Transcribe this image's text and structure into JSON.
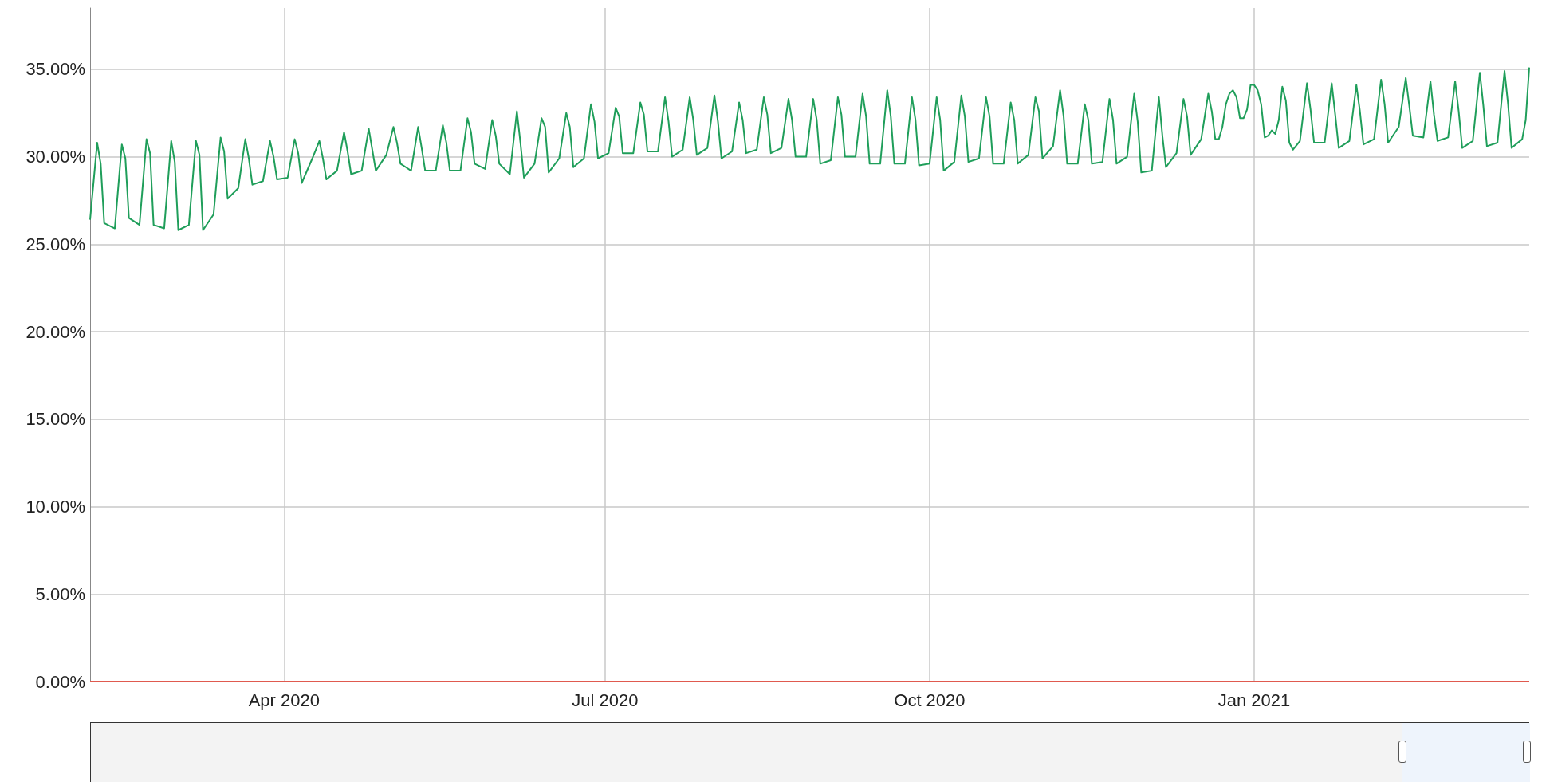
{
  "chart_data": {
    "type": "line",
    "xlim": [
      "2020-02-06",
      "2021-03-20"
    ],
    "ylim": [
      0,
      38.5
    ],
    "xticks": [
      {
        "value": "2020-04-01",
        "label": "Apr 2020"
      },
      {
        "value": "2020-07-01",
        "label": "Jul 2020"
      },
      {
        "value": "2020-10-01",
        "label": "Oct 2020"
      },
      {
        "value": "2021-01-01",
        "label": "Jan 2021"
      }
    ],
    "yticks": [
      {
        "value": 0,
        "label": "0.00%"
      },
      {
        "value": 5,
        "label": "5.00%"
      },
      {
        "value": 10,
        "label": "10.00%"
      },
      {
        "value": 15,
        "label": "15.00%"
      },
      {
        "value": 20,
        "label": "20.00%"
      },
      {
        "value": 25,
        "label": "25.00%"
      },
      {
        "value": 30,
        "label": "30.00%"
      },
      {
        "value": 35,
        "label": "35.00%"
      }
    ],
    "grid": true,
    "line_style": "solid",
    "series": [
      {
        "color": "#1f9e5a",
        "x": [
          "2020-02-06",
          "2020-02-08",
          "2020-02-09",
          "2020-02-10",
          "2020-02-13",
          "2020-02-15",
          "2020-02-16",
          "2020-02-17",
          "2020-02-20",
          "2020-02-22",
          "2020-02-23",
          "2020-02-24",
          "2020-02-27",
          "2020-02-29",
          "2020-03-01",
          "2020-03-02",
          "2020-03-05",
          "2020-03-07",
          "2020-03-08",
          "2020-03-09",
          "2020-03-12",
          "2020-03-14",
          "2020-03-15",
          "2020-03-16",
          "2020-03-19",
          "2020-03-21",
          "2020-03-22",
          "2020-03-23",
          "2020-03-26",
          "2020-03-28",
          "2020-03-29",
          "2020-03-30",
          "2020-04-02",
          "2020-04-04",
          "2020-04-05",
          "2020-04-06",
          "2020-04-09",
          "2020-04-11",
          "2020-04-12",
          "2020-04-13",
          "2020-04-16",
          "2020-04-18",
          "2020-04-19",
          "2020-04-20",
          "2020-04-23",
          "2020-04-25",
          "2020-04-26",
          "2020-04-27",
          "2020-04-30",
          "2020-05-02",
          "2020-05-03",
          "2020-05-04",
          "2020-05-07",
          "2020-05-09",
          "2020-05-10",
          "2020-05-11",
          "2020-05-14",
          "2020-05-16",
          "2020-05-17",
          "2020-05-18",
          "2020-05-21",
          "2020-05-23",
          "2020-05-24",
          "2020-05-25",
          "2020-05-28",
          "2020-05-30",
          "2020-05-31",
          "2020-06-01",
          "2020-06-04",
          "2020-06-06",
          "2020-06-07",
          "2020-06-08",
          "2020-06-11",
          "2020-06-13",
          "2020-06-14",
          "2020-06-15",
          "2020-06-18",
          "2020-06-20",
          "2020-06-21",
          "2020-06-22",
          "2020-06-25",
          "2020-06-27",
          "2020-06-28",
          "2020-06-29",
          "2020-07-02",
          "2020-07-04",
          "2020-07-05",
          "2020-07-06",
          "2020-07-09",
          "2020-07-11",
          "2020-07-12",
          "2020-07-13",
          "2020-07-16",
          "2020-07-18",
          "2020-07-19",
          "2020-07-20",
          "2020-07-23",
          "2020-07-25",
          "2020-07-26",
          "2020-07-27",
          "2020-07-30",
          "2020-08-01",
          "2020-08-02",
          "2020-08-03",
          "2020-08-06",
          "2020-08-08",
          "2020-08-09",
          "2020-08-10",
          "2020-08-13",
          "2020-08-15",
          "2020-08-16",
          "2020-08-17",
          "2020-08-20",
          "2020-08-22",
          "2020-08-23",
          "2020-08-24",
          "2020-08-27",
          "2020-08-29",
          "2020-08-30",
          "2020-08-31",
          "2020-09-03",
          "2020-09-05",
          "2020-09-06",
          "2020-09-07",
          "2020-09-10",
          "2020-09-12",
          "2020-09-13",
          "2020-09-14",
          "2020-09-17",
          "2020-09-19",
          "2020-09-20",
          "2020-09-21",
          "2020-09-24",
          "2020-09-26",
          "2020-09-27",
          "2020-09-28",
          "2020-10-01",
          "2020-10-03",
          "2020-10-04",
          "2020-10-05",
          "2020-10-08",
          "2020-10-10",
          "2020-10-11",
          "2020-10-12",
          "2020-10-15",
          "2020-10-17",
          "2020-10-18",
          "2020-10-19",
          "2020-10-22",
          "2020-10-24",
          "2020-10-25",
          "2020-10-26",
          "2020-10-29",
          "2020-10-31",
          "2020-11-01",
          "2020-11-02",
          "2020-11-05",
          "2020-11-07",
          "2020-11-08",
          "2020-11-09",
          "2020-11-12",
          "2020-11-14",
          "2020-11-15",
          "2020-11-16",
          "2020-11-19",
          "2020-11-21",
          "2020-11-22",
          "2020-11-23",
          "2020-11-26",
          "2020-11-28",
          "2020-11-29",
          "2020-11-30",
          "2020-12-03",
          "2020-12-05",
          "2020-12-06",
          "2020-12-07",
          "2020-12-10",
          "2020-12-12",
          "2020-12-13",
          "2020-12-14",
          "2020-12-17",
          "2020-12-19",
          "2020-12-20",
          "2020-12-21",
          "2020-12-22",
          "2020-12-23",
          "2020-12-24",
          "2020-12-25",
          "2020-12-26",
          "2020-12-27",
          "2020-12-28",
          "2020-12-29",
          "2020-12-30",
          "2020-12-31",
          "2021-01-01",
          "2021-01-02",
          "2021-01-03",
          "2021-01-04",
          "2021-01-05",
          "2021-01-06",
          "2021-01-07",
          "2021-01-08",
          "2021-01-09",
          "2021-01-10",
          "2021-01-11",
          "2021-01-12",
          "2021-01-14",
          "2021-01-16",
          "2021-01-17",
          "2021-01-18",
          "2021-01-21",
          "2021-01-23",
          "2021-01-24",
          "2021-01-25",
          "2021-01-28",
          "2021-01-30",
          "2021-01-31",
          "2021-02-01",
          "2021-02-04",
          "2021-02-06",
          "2021-02-07",
          "2021-02-08",
          "2021-02-11",
          "2021-02-13",
          "2021-02-14",
          "2021-02-15",
          "2021-02-18",
          "2021-02-20",
          "2021-02-21",
          "2021-02-22",
          "2021-02-25",
          "2021-02-27",
          "2021-02-28",
          "2021-03-01",
          "2021-03-04",
          "2021-03-06",
          "2021-03-07",
          "2021-03-08",
          "2021-03-11",
          "2021-03-13",
          "2021-03-14",
          "2021-03-15",
          "2021-03-18",
          "2021-03-19",
          "2021-03-20"
        ],
        "values": [
          26.4,
          30.8,
          29.6,
          26.2,
          25.9,
          30.7,
          29.9,
          26.5,
          26.1,
          31.0,
          30.2,
          26.1,
          25.9,
          30.9,
          29.7,
          25.8,
          26.1,
          30.9,
          30.1,
          25.8,
          26.7,
          31.1,
          30.3,
          27.6,
          28.2,
          31.0,
          29.9,
          28.4,
          28.6,
          30.9,
          30.0,
          28.7,
          28.8,
          31.0,
          30.2,
          28.5,
          29.9,
          30.9,
          29.9,
          28.7,
          29.2,
          31.4,
          30.3,
          29.0,
          29.2,
          31.6,
          30.4,
          29.2,
          30.1,
          31.7,
          30.8,
          29.6,
          29.2,
          31.7,
          30.5,
          29.2,
          29.2,
          31.8,
          30.8,
          29.2,
          29.2,
          32.2,
          31.4,
          29.6,
          29.3,
          32.1,
          31.2,
          29.6,
          29.0,
          32.6,
          30.8,
          28.8,
          29.6,
          32.2,
          31.7,
          29.1,
          29.9,
          32.5,
          31.7,
          29.4,
          29.9,
          33.0,
          32.0,
          29.9,
          30.2,
          32.8,
          32.3,
          30.2,
          30.2,
          33.1,
          32.4,
          30.3,
          30.3,
          33.4,
          32.0,
          30.0,
          30.4,
          33.4,
          32.1,
          30.1,
          30.5,
          33.5,
          32.0,
          29.9,
          30.3,
          33.1,
          32.1,
          30.2,
          30.4,
          33.4,
          32.4,
          30.2,
          30.5,
          33.3,
          32.1,
          30.0,
          30.0,
          33.3,
          32.1,
          29.6,
          29.8,
          33.4,
          32.4,
          30.0,
          30.0,
          33.6,
          32.3,
          29.6,
          29.6,
          33.8,
          32.3,
          29.6,
          29.6,
          33.4,
          32.1,
          29.5,
          29.6,
          33.4,
          32.1,
          29.2,
          29.7,
          33.5,
          32.3,
          29.7,
          29.9,
          33.4,
          32.3,
          29.6,
          29.6,
          33.1,
          32.1,
          29.6,
          30.1,
          33.4,
          32.6,
          29.9,
          30.6,
          33.8,
          32.3,
          29.6,
          29.6,
          33.0,
          32.1,
          29.6,
          29.7,
          33.3,
          32.1,
          29.6,
          30.0,
          33.6,
          32.0,
          29.1,
          29.2,
          33.4,
          31.2,
          29.4,
          30.2,
          33.3,
          32.3,
          30.1,
          31.0,
          33.6,
          32.6,
          31.0,
          31.0,
          31.7,
          33.0,
          33.6,
          33.8,
          33.4,
          32.2,
          32.2,
          32.7,
          34.1,
          34.1,
          33.8,
          33.0,
          31.1,
          31.2,
          31.5,
          31.3,
          32.1,
          34.0,
          33.2,
          30.8,
          30.4,
          30.9,
          34.2,
          32.7,
          30.8,
          30.8,
          34.2,
          32.4,
          30.5,
          30.9,
          34.1,
          32.6,
          30.7,
          31.0,
          34.4,
          33.0,
          30.8,
          31.7,
          34.5,
          32.9,
          31.2,
          31.1,
          34.3,
          32.4,
          30.9,
          31.1,
          34.3,
          32.6,
          30.5,
          30.9,
          34.8,
          32.9,
          30.6,
          30.8,
          34.9,
          33.0,
          30.5,
          31.0,
          32.1,
          35.1
        ]
      },
      {
        "color": "#e05a4f",
        "x": [
          "2020-02-06",
          "2021-03-20"
        ],
        "values": [
          0,
          0
        ]
      }
    ]
  }
}
